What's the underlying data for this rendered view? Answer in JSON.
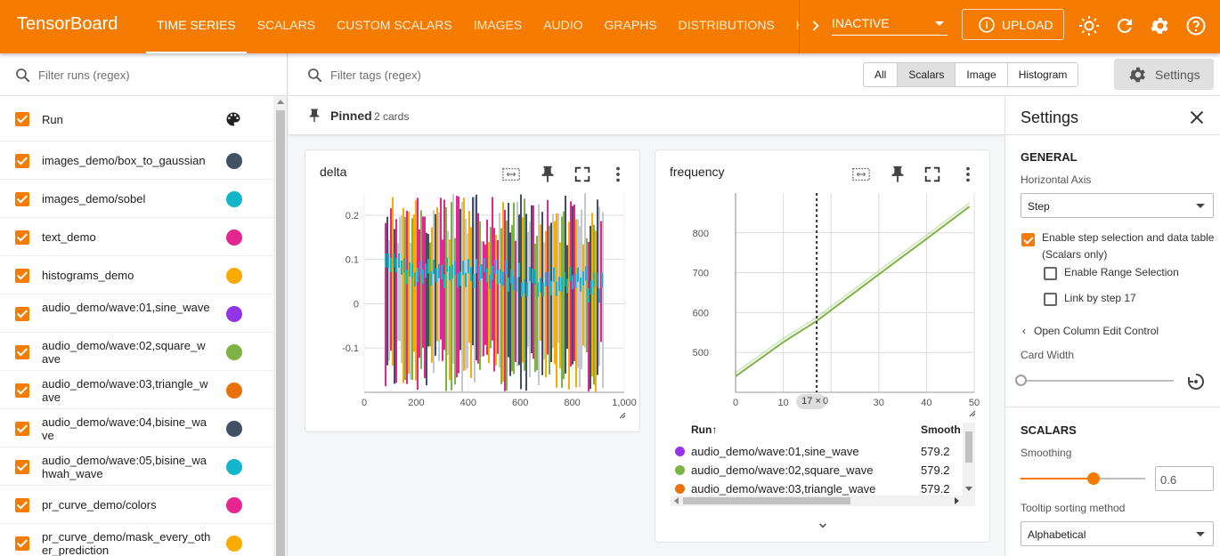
{
  "app": {
    "title": "TensorBoard"
  },
  "nav": {
    "tabs": [
      "TIME SERIES",
      "SCALARS",
      "CUSTOM SCALARS",
      "IMAGES",
      "AUDIO",
      "GRAPHS",
      "DISTRIBUTIONS",
      "HISTO"
    ],
    "active_tab": "TIME SERIES",
    "plugin_select": "INACTIVE",
    "upload_label": "UPLOAD"
  },
  "runs": {
    "filter_placeholder": "Filter runs (regex)",
    "header": "Run",
    "items": [
      {
        "name": "images_demo/box_to_gaussian",
        "color": "#425066"
      },
      {
        "name": "images_demo/sobel",
        "color": "#12b5cb"
      },
      {
        "name": "text_demo",
        "color": "#e52592"
      },
      {
        "name": "histograms_demo",
        "color": "#f9ab00"
      },
      {
        "name": "audio_demo/wave:01,sine_wave",
        "color": "#9334e6"
      },
      {
        "name": "audio_demo/wave:02,square_wave",
        "color": "#7cb342"
      },
      {
        "name": "audio_demo/wave:03,triangle_wave",
        "color": "#e8710a"
      },
      {
        "name": "audio_demo/wave:04,bisine_wave",
        "color": "#425066"
      },
      {
        "name": "audio_demo/wave:05,bisine_wahwah_wave",
        "color": "#12b5cb"
      },
      {
        "name": "pr_curve_demo/colors",
        "color": "#e52592"
      },
      {
        "name": "pr_curve_demo/mask_every_other_prediction",
        "color": "#f9ab00"
      }
    ]
  },
  "tags": {
    "filter_placeholder": "Filter tags (regex)",
    "filters": [
      "All",
      "Scalars",
      "Image",
      "Histogram"
    ],
    "active_filter": "Scalars",
    "settings_label": "Settings"
  },
  "pinned": {
    "label": "Pinned",
    "count": "2 cards"
  },
  "cards": {
    "delta": {
      "title": "delta",
      "y_ticks": [
        "0.2",
        "0.1",
        "0",
        "-0.1"
      ],
      "x_ticks": [
        "0",
        "200",
        "400",
        "600",
        "800",
        "1,000"
      ]
    },
    "frequency": {
      "title": "frequency",
      "y_ticks": [
        "800",
        "700",
        "600",
        "500"
      ],
      "x_ticks": [
        "0",
        "10",
        "30",
        "40",
        "50"
      ],
      "step_chip": "17",
      "step_chip_suffix": "0",
      "table": {
        "col_run": "Run",
        "col_smooth": "Smooth",
        "rows": [
          {
            "run": "audio_demo/wave:01,sine_wave",
            "value": "579.2",
            "color": "#9334e6"
          },
          {
            "run": "audio_demo/wave:02,square_wave",
            "value": "579.2",
            "color": "#7cb342"
          },
          {
            "run": "audio_demo/wave:03,triangle_wave",
            "value": "579.2",
            "color": "#e8710a"
          }
        ]
      }
    }
  },
  "chart_data": [
    {
      "type": "line",
      "title": "delta",
      "xlabel": "",
      "ylabel": "",
      "xlim": [
        0,
        1000
      ],
      "ylim": [
        -0.2,
        0.25
      ],
      "grid": true,
      "series": []
    },
    {
      "type": "line",
      "title": "frequency",
      "xlabel": "",
      "ylabel": "",
      "xlim": [
        0,
        50
      ],
      "ylim": [
        400,
        900
      ],
      "grid": true,
      "selected_step": 17,
      "series": [
        {
          "name": "audio_demo/wave:02,square_wave",
          "x": [
            0,
            10,
            17,
            20,
            30,
            40,
            49
          ],
          "y": [
            440,
            526,
            579,
            606,
            696,
            785,
            866
          ]
        }
      ]
    }
  ],
  "settings": {
    "title": "Settings",
    "general_label": "GENERAL",
    "horizontal_axis_label": "Horizontal Axis",
    "horizontal_axis_value": "Step",
    "step_selection_label": "Enable step selection and data table (Scalars only)",
    "range_selection_label": "Enable Range Selection",
    "link_step_label": "Link by step 17",
    "column_edit_label": "Open Column Edit Control",
    "card_width_label": "Card Width",
    "scalars_label": "SCALARS",
    "smoothing_label": "Smoothing",
    "smoothing_value": "0.6",
    "tooltip_label": "Tooltip sorting method",
    "tooltip_value": "Alphabetical"
  }
}
